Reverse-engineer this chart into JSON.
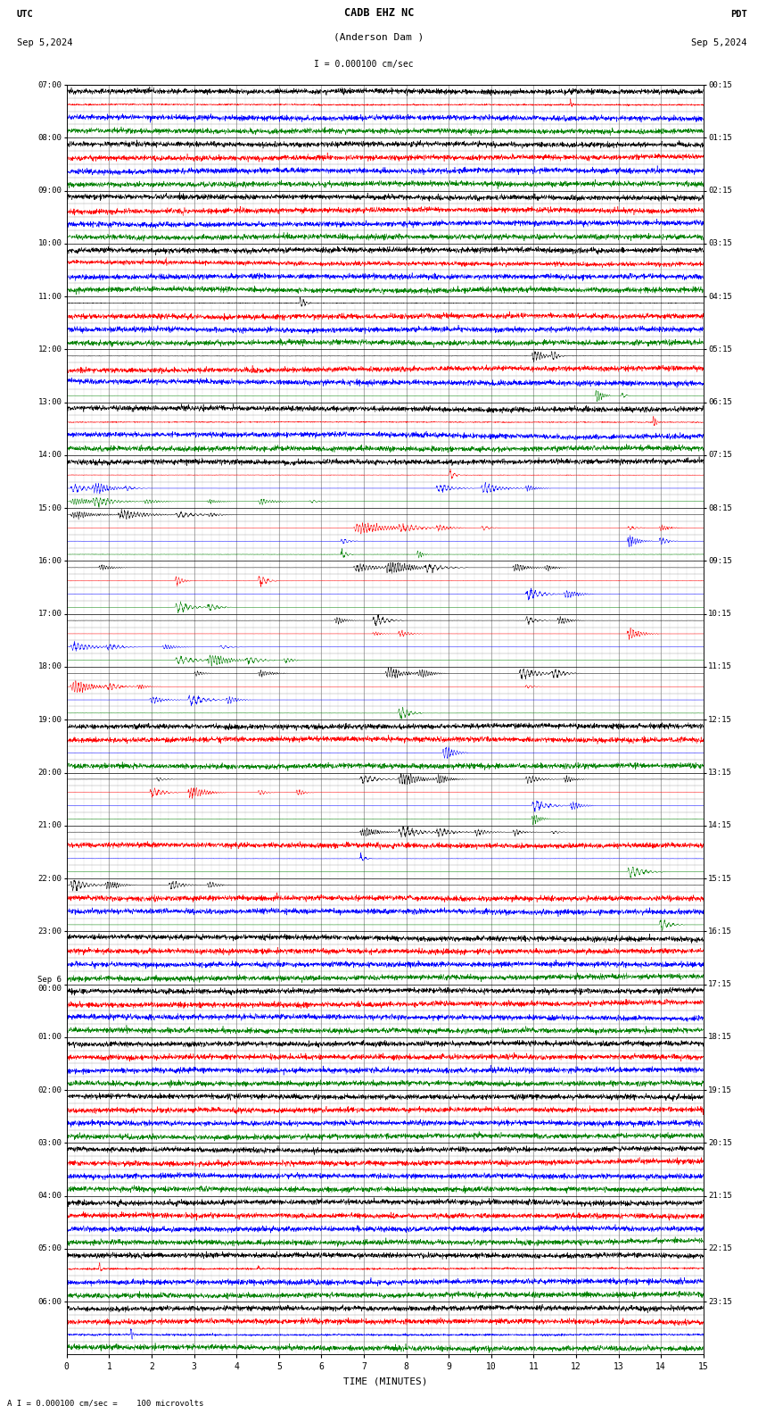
{
  "title_line1": "CADB EHZ NC",
  "title_line2": "(Anderson Dam )",
  "scale_label": "I = 0.000100 cm/sec",
  "utc_label": "UTC",
  "utc_date": "Sep 5,2024",
  "pdt_label": "PDT",
  "pdt_date": "Sep 5,2024",
  "bottom_label": "A I = 0.000100 cm/sec =    100 microvolts",
  "xlabel": "TIME (MINUTES)",
  "time_minutes": 15,
  "background_color": "#ffffff",
  "trace_colors": [
    "black",
    "red",
    "blue",
    "green"
  ],
  "left_times": [
    "07:00",
    "08:00",
    "09:00",
    "10:00",
    "11:00",
    "12:00",
    "13:00",
    "14:00",
    "15:00",
    "16:00",
    "17:00",
    "18:00",
    "19:00",
    "20:00",
    "21:00",
    "22:00",
    "23:00",
    "Sep 6\n00:00",
    "01:00",
    "02:00",
    "03:00",
    "04:00",
    "05:00",
    "06:00"
  ],
  "right_times": [
    "00:15",
    "01:15",
    "02:15",
    "03:15",
    "04:15",
    "05:15",
    "06:15",
    "07:15",
    "08:15",
    "09:15",
    "10:15",
    "11:15",
    "12:15",
    "13:15",
    "14:15",
    "15:15",
    "16:15",
    "17:15",
    "18:15",
    "19:15",
    "20:15",
    "21:15",
    "22:15",
    "23:15"
  ],
  "n_rows": 24,
  "traces_per_row": 4,
  "fig_width": 8.5,
  "fig_height": 15.84
}
